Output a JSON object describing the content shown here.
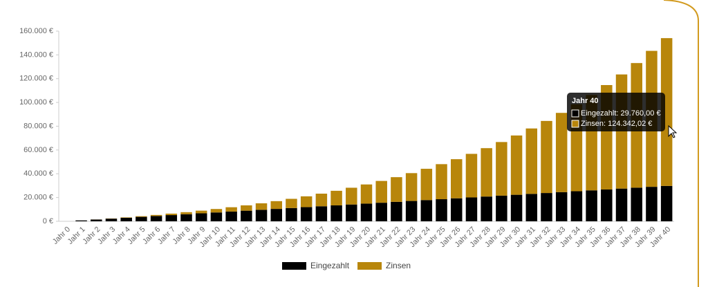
{
  "chart_data": {
    "type": "stacked-bar",
    "categories": [
      "Jahr 0",
      "Jahr 1",
      "Jahr 2",
      "Jahr 3",
      "Jahr 4",
      "Jahr 5",
      "Jahr 6",
      "Jahr 7",
      "Jahr 8",
      "Jahr 9",
      "Jahr 10",
      "Jahr 11",
      "Jahr 12",
      "Jahr 13",
      "Jahr 14",
      "Jahr 15",
      "Jahr 16",
      "Jahr 17",
      "Jahr 18",
      "Jahr 19",
      "Jahr 20",
      "Jahr 21",
      "Jahr 22",
      "Jahr 23",
      "Jahr 24",
      "Jahr 25",
      "Jahr 26",
      "Jahr 27",
      "Jahr 28",
      "Jahr 29",
      "Jahr 30",
      "Jahr 31",
      "Jahr 32",
      "Jahr 33",
      "Jahr 34",
      "Jahr 35",
      "Jahr 36",
      "Jahr 37",
      "Jahr 38",
      "Jahr 39",
      "Jahr 40"
    ],
    "series": [
      {
        "name": "Eingezahlt",
        "color": "#000000",
        "values": [
          0,
          744,
          1488,
          2232,
          2976,
          3720,
          4464,
          5208,
          5952,
          6696,
          7440,
          8184,
          8928,
          9672,
          10416,
          11160,
          11904,
          12648,
          13392,
          14136,
          14880,
          15624,
          16368,
          17112,
          17856,
          18600,
          19344,
          20088,
          20832,
          21576,
          22320,
          23064,
          23808,
          24552,
          25296,
          26040,
          26784,
          27528,
          28272,
          29016,
          29760
        ]
      },
      {
        "name": "Zinsen",
        "color": "#b8860b",
        "values": [
          0,
          0,
          53,
          163,
          335,
          571,
          878,
          1260,
          1723,
          2272,
          2913,
          3653,
          4499,
          5460,
          6542,
          7754,
          9106,
          10609,
          12272,
          14106,
          16126,
          18342,
          20771,
          23426,
          26324,
          29484,
          32922,
          36658,
          40715,
          45116,
          49885,
          55047,
          60632,
          66669,
          73191,
          80233,
          87831,
          96027,
          104861,
          114380,
          124342.02
        ]
      }
    ],
    "ylim": [
      0,
      160000
    ],
    "yticks": [
      {
        "value": 0,
        "label": "0 €"
      },
      {
        "value": 20000,
        "label": "20.000 €"
      },
      {
        "value": 40000,
        "label": "40.000 €"
      },
      {
        "value": 60000,
        "label": "60.000 €"
      },
      {
        "value": 80000,
        "label": "80.000 €"
      },
      {
        "value": 100000,
        "label": "100.000 €"
      },
      {
        "value": 120000,
        "label": "120.000 €"
      },
      {
        "value": 140000,
        "label": "140.000 €"
      },
      {
        "value": 160000,
        "label": "160.000 €"
      }
    ],
    "grid": false,
    "legend": "bottom",
    "tooltip": {
      "title": "Jahr 40",
      "items": [
        "Eingezahlt: 29.760,00 €",
        "Zinsen: 124.342,02 €"
      ]
    }
  }
}
